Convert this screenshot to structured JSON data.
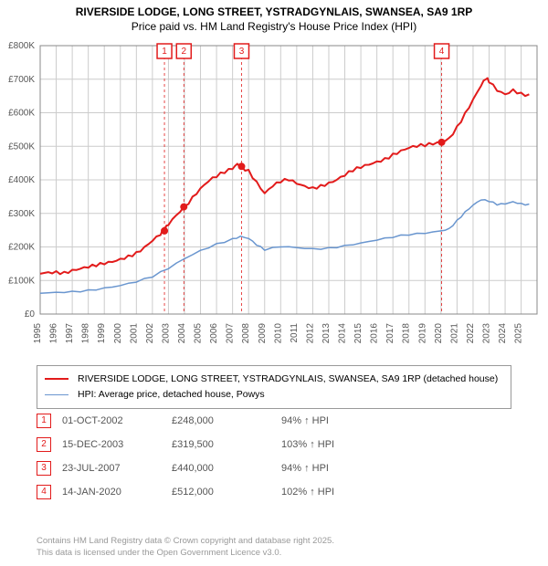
{
  "title_line1": "RIVERSIDE LODGE, LONG STREET, YSTRADGYNLAIS, SWANSEA, SA9 1RP",
  "title_line2": "Price paid vs. HM Land Registry's House Price Index (HPI)",
  "chart": {
    "type": "line",
    "background_color": "#ffffff",
    "grid_color": "#cccccc",
    "axis_color": "#888888",
    "label_fontsize": 10,
    "x": {
      "min": 1995,
      "max": 2025.99,
      "ticks": [
        1995,
        1996,
        1997,
        1998,
        1999,
        2000,
        2001,
        2002,
        2003,
        2004,
        2005,
        2006,
        2007,
        2008,
        2009,
        2010,
        2011,
        2012,
        2013,
        2014,
        2015,
        2016,
        2017,
        2018,
        2019,
        2020,
        2021,
        2022,
        2023,
        2024,
        2025
      ]
    },
    "y": {
      "min": 0,
      "max": 800000,
      "ticks": [
        0,
        100000,
        200000,
        300000,
        400000,
        500000,
        600000,
        700000,
        800000
      ],
      "tick_labels": [
        "£0",
        "£100K",
        "£200K",
        "£300K",
        "£400K",
        "£500K",
        "£600K",
        "£700K",
        "£800K"
      ]
    },
    "series": [
      {
        "id": "price_paid",
        "color": "#e21b1b",
        "width": 2,
        "label": "RIVERSIDE LODGE, LONG STREET, YSTRADGYNLAIS, SWANSEA, SA9 1RP (detached house)",
        "points": [
          [
            1995,
            120000
          ],
          [
            1995.5,
            125000
          ],
          [
            1996,
            128000
          ],
          [
            1996.5,
            126000
          ],
          [
            1997,
            132000
          ],
          [
            1997.5,
            135000
          ],
          [
            1998,
            138000
          ],
          [
            1998.5,
            142000
          ],
          [
            1999,
            148000
          ],
          [
            1999.5,
            155000
          ],
          [
            2000,
            165000
          ],
          [
            2000.5,
            175000
          ],
          [
            2001,
            185000
          ],
          [
            2001.5,
            200000
          ],
          [
            2002,
            218000
          ],
          [
            2002.5,
            235000
          ],
          [
            2002.75,
            248000
          ],
          [
            2003,
            265000
          ],
          [
            2003.5,
            295000
          ],
          [
            2003.96,
            319500
          ],
          [
            2004,
            322000
          ],
          [
            2004.5,
            350000
          ],
          [
            2005,
            375000
          ],
          [
            2005.5,
            395000
          ],
          [
            2006,
            408000
          ],
          [
            2006.5,
            420000
          ],
          [
            2007,
            432000
          ],
          [
            2007.3,
            448000
          ],
          [
            2007.56,
            440000
          ],
          [
            2008,
            430000
          ],
          [
            2008.5,
            395000
          ],
          [
            2009,
            360000
          ],
          [
            2009.5,
            380000
          ],
          [
            2010,
            392000
          ],
          [
            2010.5,
            398000
          ],
          [
            2011,
            388000
          ],
          [
            2011.5,
            382000
          ],
          [
            2012,
            378000
          ],
          [
            2012.5,
            385000
          ],
          [
            2013,
            392000
          ],
          [
            2013.5,
            400000
          ],
          [
            2014,
            412000
          ],
          [
            2014.5,
            425000
          ],
          [
            2015,
            435000
          ],
          [
            2015.5,
            445000
          ],
          [
            2016,
            455000
          ],
          [
            2016.5,
            465000
          ],
          [
            2017,
            478000
          ],
          [
            2017.5,
            488000
          ],
          [
            2018,
            495000
          ],
          [
            2018.5,
            498000
          ],
          [
            2019,
            500000
          ],
          [
            2019.5,
            505000
          ],
          [
            2020.04,
            512000
          ],
          [
            2020.5,
            525000
          ],
          [
            2021,
            560000
          ],
          [
            2021.5,
            600000
          ],
          [
            2022,
            640000
          ],
          [
            2022.5,
            680000
          ],
          [
            2022.8,
            700000
          ],
          [
            2023,
            690000
          ],
          [
            2023.5,
            665000
          ],
          [
            2024,
            655000
          ],
          [
            2024.5,
            670000
          ],
          [
            2025,
            660000
          ],
          [
            2025.5,
            655000
          ]
        ]
      },
      {
        "id": "hpi",
        "color": "#6a96cf",
        "width": 1.5,
        "label": "HPI: Average price, detached house, Powys",
        "points": [
          [
            1995,
            62000
          ],
          [
            1996,
            65000
          ],
          [
            1997,
            68000
          ],
          [
            1998,
            72000
          ],
          [
            1999,
            78000
          ],
          [
            2000,
            85000
          ],
          [
            2001,
            95000
          ],
          [
            2002,
            110000
          ],
          [
            2003,
            135000
          ],
          [
            2004,
            165000
          ],
          [
            2005,
            190000
          ],
          [
            2006,
            210000
          ],
          [
            2007,
            225000
          ],
          [
            2007.5,
            232000
          ],
          [
            2008,
            225000
          ],
          [
            2008.5,
            205000
          ],
          [
            2009,
            190000
          ],
          [
            2010,
            200000
          ],
          [
            2011,
            198000
          ],
          [
            2012,
            195000
          ],
          [
            2013,
            198000
          ],
          [
            2014,
            205000
          ],
          [
            2015,
            212000
          ],
          [
            2016,
            220000
          ],
          [
            2017,
            228000
          ],
          [
            2018,
            235000
          ],
          [
            2019,
            240000
          ],
          [
            2020,
            248000
          ],
          [
            2020.5,
            255000
          ],
          [
            2021,
            280000
          ],
          [
            2021.5,
            305000
          ],
          [
            2022,
            325000
          ],
          [
            2022.5,
            340000
          ],
          [
            2023,
            335000
          ],
          [
            2023.5,
            325000
          ],
          [
            2024,
            328000
          ],
          [
            2024.5,
            335000
          ],
          [
            2025,
            330000
          ],
          [
            2025.5,
            328000
          ]
        ]
      }
    ],
    "sale_markers": [
      {
        "n": "1",
        "x": 2002.75,
        "y": 248000
      },
      {
        "n": "2",
        "x": 2003.96,
        "y": 319500
      },
      {
        "n": "3",
        "x": 2007.56,
        "y": 440000
      },
      {
        "n": "4",
        "x": 2020.04,
        "y": 512000
      }
    ]
  },
  "sales": [
    {
      "n": "1",
      "date": "01-OCT-2002",
      "price": "£248,000",
      "pct": "94% ↑ HPI"
    },
    {
      "n": "2",
      "date": "15-DEC-2003",
      "price": "£319,500",
      "pct": "103% ↑ HPI"
    },
    {
      "n": "3",
      "date": "23-JUL-2007",
      "price": "£440,000",
      "pct": "94% ↑ HPI"
    },
    {
      "n": "4",
      "date": "14-JAN-2020",
      "price": "£512,000",
      "pct": "102% ↑ HPI"
    }
  ],
  "attribution_line1": "Contains HM Land Registry data © Crown copyright and database right 2025.",
  "attribution_line2": "This data is licensed under the Open Government Licence v3.0."
}
